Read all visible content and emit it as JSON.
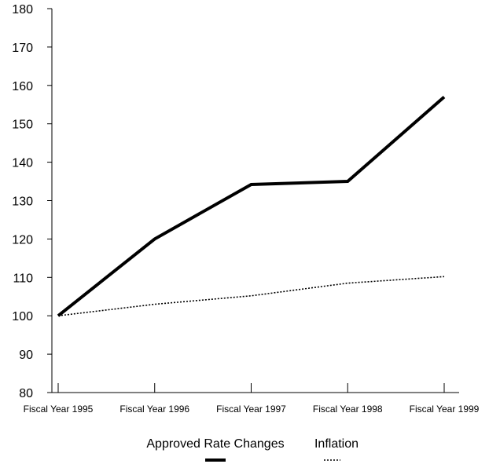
{
  "chart_data": {
    "type": "line",
    "title": "",
    "xlabel": "",
    "ylabel": "",
    "categories": [
      "Fiscal Year 1995",
      "Fiscal Year 1996",
      "Fiscal Year 1997",
      "Fiscal Year 1998",
      "Fiscal Year 1999"
    ],
    "ylim": [
      80,
      180
    ],
    "yticks": [
      80,
      90,
      100,
      110,
      120,
      130,
      140,
      150,
      160,
      170,
      180
    ],
    "grid": false,
    "legend_placement": "bottom-center",
    "series": [
      {
        "name": "Approved Rate Changes",
        "style": "solid-thick",
        "color": "#000000",
        "values": [
          100,
          120,
          134.2,
          135,
          157
        ]
      },
      {
        "name": "Inflation",
        "style": "dotted",
        "color": "#000000",
        "values": [
          100,
          103,
          105.2,
          108.5,
          110.2
        ]
      }
    ]
  }
}
